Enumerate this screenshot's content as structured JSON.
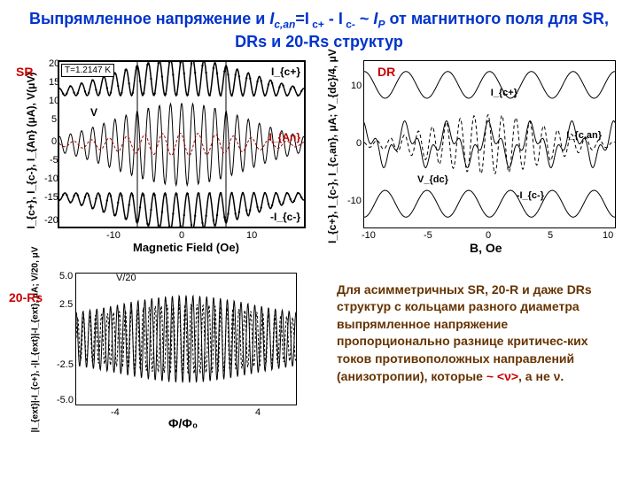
{
  "title_parts": {
    "p1": "Выпрямленное напряжение и ",
    "p2": "I",
    "p3": "c,an",
    "p4": "=I",
    "p5": " c+",
    "p6": " - I",
    "p7": " c-",
    "p8": " ~ ",
    "p9": "I",
    "p10": "P",
    "p11": "  от магнитного поля для SR, DRs и 20-Rs структур"
  },
  "labels": {
    "sr": "SR",
    "dr": "DR",
    "rs20": "20-Rs"
  },
  "chart_sr": {
    "tbox": "T=1.2147 K",
    "ylabel": "I_{c+}, I_{c-}, I_{An} (μA), V(μV)",
    "xlabel": "Magnetic Field (Oe)",
    "xticks": [
      "-10",
      "0",
      "10"
    ],
    "yticks": [
      "-20",
      "-15",
      "-10",
      "-5",
      "0",
      "5",
      "10",
      "15",
      "20"
    ],
    "curve_labels": {
      "icp": "I_{c+}",
      "v": "V",
      "ian": "I_{An}",
      "icm": "-I_{c-}"
    },
    "colors": {
      "main": "#000000",
      "ian": "#aa0000",
      "box": "#000000"
    },
    "envelope_top": 20,
    "envelope_bot": -20,
    "osc_periods": 22,
    "ian_amp": 3,
    "xlim": [
      -18,
      18
    ],
    "ylim": [
      -22,
      22
    ]
  },
  "chart_dr": {
    "ylabel": "I_{c+}, I_{c-}, I_{c,an}, μA;  V_{dc}/4, μV",
    "xlabel": "B, Oe",
    "xticks": [
      "-10",
      "-5",
      "0",
      "5",
      "10"
    ],
    "yticks": [
      "-10",
      "0",
      "10"
    ],
    "curve_labels": {
      "icp": "I_{c+}",
      "ican": "I_{c,an}",
      "vdc": "V_{dc}",
      "icm": "-I_{c-}"
    },
    "top_base": 10,
    "bot_base": -10,
    "mid_base": 0,
    "osc_amp": 2.5,
    "osc_periods_slow": 6,
    "osc_periods_fast": 18,
    "xlim": [
      -10,
      10
    ],
    "ylim": [
      -14,
      14
    ]
  },
  "chart_20rs": {
    "ylabel": "|I_{ext}|-I_{c+}, -|I_{ext}|-I_{ext}, μA;  V/20, μV",
    "xlabel": "Φ/Φ₀",
    "toplabel": "V/20",
    "xticks": [
      "-4",
      "4"
    ],
    "yticks": [
      "-5.0",
      "-2.5",
      "2.5",
      "5.0"
    ],
    "osc_amp": 4,
    "osc_periods": 32,
    "xlim": [
      -6,
      6
    ],
    "ylim": [
      -6,
      6
    ]
  },
  "body_text": {
    "t1": "Для асимметричных SR, 20-R и даже DRs структур с кольцами разного диаметра выпрямленное напряжение пропорционально разнице критичес-ких токов противоположных направлений (анизотропии), которые ",
    "t2": "~ <ν>",
    "t3": ", а не ν."
  }
}
